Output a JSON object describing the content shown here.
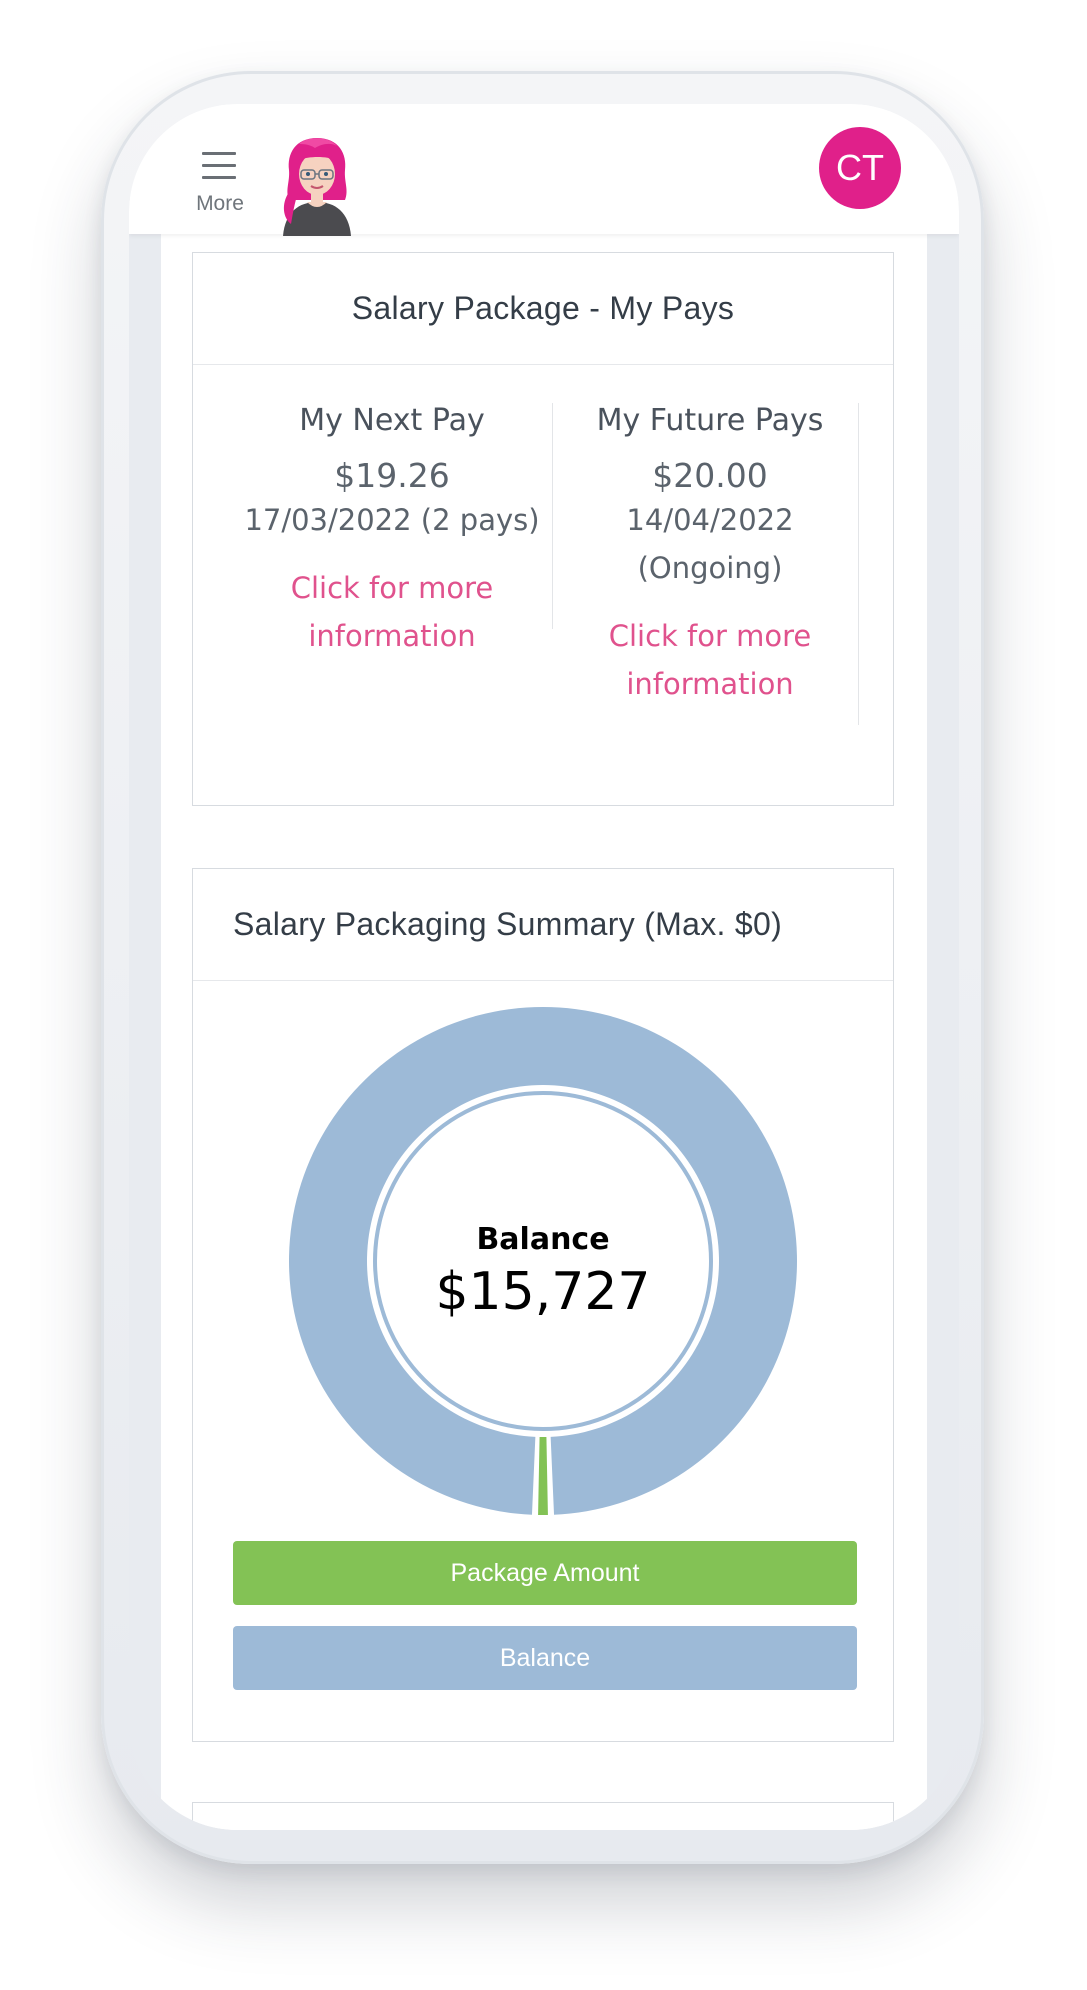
{
  "header": {
    "menu_label": "More",
    "user_initials": "CT",
    "badge_color": "#e0208a"
  },
  "pays_card": {
    "title": "Salary Package - My Pays",
    "next_pay": {
      "title": "My Next Pay",
      "amount": "$19.26",
      "date": "17/03/2022 (2 pays)",
      "link_line1": "Click for more",
      "link_line2": "information"
    },
    "future_pays": {
      "title": "My Future Pays",
      "amount": "$20.00",
      "date_line1": "14/04/2022",
      "date_line2": "(Ongoing)",
      "link_line1": "Click for more",
      "link_line2": "information"
    },
    "link_color": "#e0528d"
  },
  "summary_card": {
    "title": "Salary Packaging Summary (Max. $0)",
    "center_title": "Balance",
    "center_value": "$15,727",
    "legend": {
      "package_amount": "Package Amount",
      "balance": "Balance"
    }
  },
  "chart_data": {
    "type": "pie",
    "donut": true,
    "categories": [
      "Package Amount",
      "Balance"
    ],
    "values": [
      1,
      99
    ],
    "colors": [
      "#83c255",
      "#9dbad7"
    ]
  }
}
